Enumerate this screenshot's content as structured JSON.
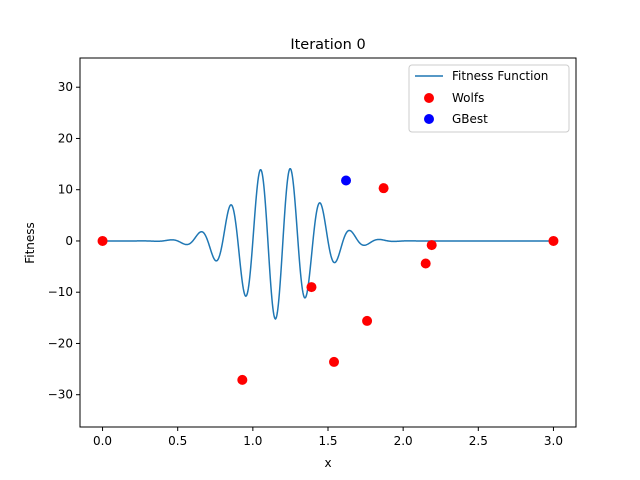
{
  "chart_data": {
    "type": "line+scatter",
    "title": "Iteration 0",
    "xlabel": "x",
    "ylabel": "Fitness",
    "xlim": [
      -0.15,
      3.15
    ],
    "ylim": [
      -36.3,
      35.7
    ],
    "xticks": [
      0.0,
      0.5,
      1.0,
      1.5,
      2.0,
      2.5,
      3.0
    ],
    "xtick_labels": [
      "0.0",
      "0.5",
      "1.0",
      "1.5",
      "2.0",
      "2.5",
      "3.0"
    ],
    "yticks": [
      -30,
      -20,
      -10,
      0,
      10,
      20,
      30
    ],
    "ytick_labels": [
      "−30",
      "−20",
      "−10",
      "0",
      "10",
      "20",
      "30"
    ],
    "grid": false,
    "legend_position": "top-right",
    "series": [
      {
        "name": "Fitness Function",
        "kind": "line",
        "color": "#1f77b4",
        "function": "x*sin(10*pi*x)*exp(-8*(x-1.1)^2)*13.5",
        "x_range": [
          0,
          3
        ]
      },
      {
        "name": "Wolfs",
        "kind": "scatter",
        "color": "#ff0000",
        "points": [
          {
            "x": 0.0,
            "y": 0.0
          },
          {
            "x": 0.93,
            "y": -27.1
          },
          {
            "x": 1.39,
            "y": -9.0
          },
          {
            "x": 1.54,
            "y": -23.6
          },
          {
            "x": 1.76,
            "y": -15.6
          },
          {
            "x": 1.87,
            "y": 10.3
          },
          {
            "x": 2.15,
            "y": -4.4
          },
          {
            "x": 2.19,
            "y": -0.8
          },
          {
            "x": 3.0,
            "y": 0.0
          }
        ]
      },
      {
        "name": "GBest",
        "kind": "scatter",
        "color": "#0000ff",
        "points": [
          {
            "x": 1.62,
            "y": 11.8
          }
        ]
      }
    ]
  }
}
